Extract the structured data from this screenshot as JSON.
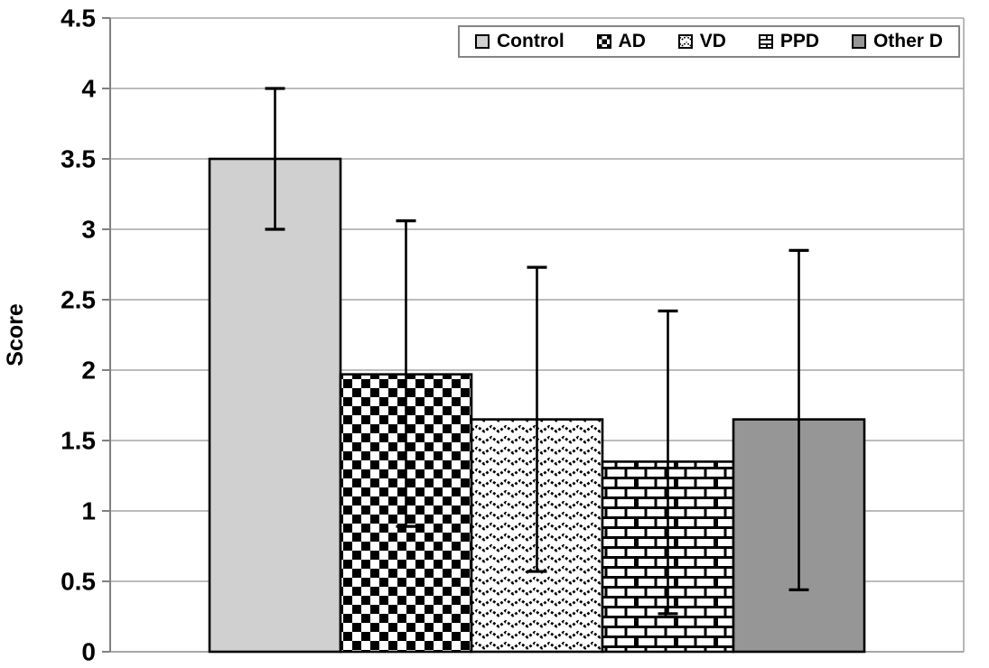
{
  "chart_data": {
    "type": "bar",
    "title": "",
    "xlabel": "",
    "ylabel": "Score",
    "ylim": [
      0,
      4.5
    ],
    "ytick_step": 0.5,
    "yticks": [
      "0",
      "0.5",
      "1",
      "1.5",
      "2",
      "2.5",
      "3",
      "3.5",
      "4",
      "4.5"
    ],
    "categories": [
      "Control",
      "AD",
      "VD",
      "PPD",
      "Other D"
    ],
    "values": [
      3.5,
      1.97,
      1.65,
      1.35,
      1.65
    ],
    "error_high": [
      4.0,
      3.06,
      2.73,
      2.42,
      2.85
    ],
    "error_low": [
      3.0,
      0.89,
      0.57,
      0.27,
      0.44
    ],
    "grid": true,
    "legend_position": "top-right",
    "series_styles": [
      {
        "name": "Control",
        "fill": "solid",
        "color": "#d0d0d0"
      },
      {
        "name": "AD",
        "fill": "checker",
        "color": "#000000"
      },
      {
        "name": "VD",
        "fill": "zigzag",
        "color": "#000000"
      },
      {
        "name": "PPD",
        "fill": "brick",
        "color": "#000000"
      },
      {
        "name": "Other D",
        "fill": "solid",
        "color": "#969696"
      }
    ]
  },
  "legend": {
    "items": [
      {
        "label": "Control",
        "swatch": "light-gray-solid"
      },
      {
        "label": "AD",
        "swatch": "black-white-checkerboard"
      },
      {
        "label": "VD",
        "swatch": "zigzag-dotted"
      },
      {
        "label": "PPD",
        "swatch": "brick"
      },
      {
        "label": "Other D",
        "swatch": "medium-gray-solid"
      }
    ]
  },
  "colors": {
    "background": "#ffffff",
    "gridline": "#a6a6a6",
    "axis_line": "#808080",
    "bar_border": "#000000",
    "error_bar": "#000000",
    "text": "#000000",
    "control_fill": "#d0d0d0",
    "other_d_fill": "#969696",
    "legend_border": "#848484"
  }
}
